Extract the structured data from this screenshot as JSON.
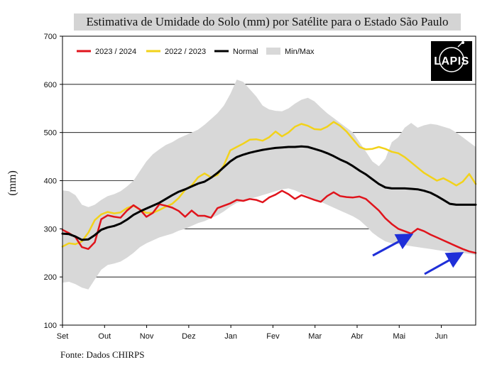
{
  "title": "Estimativa de Umidade do Solo (mm) por Satélite para o Estado São Paulo",
  "source": "Fonte: Dados CHIRPS",
  "logo_text": "LAPIS",
  "colors": {
    "2023_2024": "#e0141c",
    "2022_2023": "#f2d21a",
    "normal": "#000000",
    "minmax": "#d8d8d8",
    "arrow": "#1f2fd8"
  },
  "chart_data": {
    "type": "line",
    "title": "Estimativa de Umidade do Solo (mm) por Satélite para o Estado São Paulo",
    "xlabel": "",
    "ylabel": "(mm)",
    "ylim": [
      100,
      700
    ],
    "yticks": [
      100,
      200,
      300,
      400,
      500,
      600,
      700
    ],
    "months": [
      "Set",
      "Out",
      "Nov",
      "Dez",
      "Jan",
      "Fev",
      "Mar",
      "Abr",
      "Mai",
      "Jun"
    ],
    "xlim": [
      0,
      36
    ],
    "grid": true,
    "legend_position": "top-left",
    "legend": [
      "2023 / 2024",
      "2022 / 2023",
      "Normal",
      "Min/Max"
    ],
    "series": [
      {
        "name": "2023 / 2024",
        "color_key": "2023_2024",
        "values": [
          298,
          291,
          283,
          262,
          258,
          272,
          320,
          328,
          325,
          323,
          338,
          349,
          340,
          325,
          333,
          351,
          348,
          344,
          337,
          325,
          338,
          327,
          327,
          323,
          343,
          348,
          353,
          360,
          358,
          362,
          360,
          355,
          365,
          371,
          379,
          372,
          362,
          370,
          365,
          360,
          356,
          368,
          376,
          368,
          366,
          365,
          367,
          362,
          350,
          338,
          322,
          310,
          300,
          295,
          290,
          300,
          295,
          288,
          282,
          276,
          270,
          264,
          258,
          253,
          250
        ]
      },
      {
        "name": "2022 / 2023",
        "color_key": "2022_2023",
        "values": [
          263,
          270,
          268,
          274,
          292,
          318,
          330,
          335,
          332,
          334,
          343,
          348,
          340,
          333,
          333,
          339,
          346,
          352,
          364,
          381,
          390,
          407,
          415,
          407,
          412,
          432,
          463,
          470,
          477,
          485,
          486,
          483,
          490,
          502,
          492,
          500,
          512,
          518,
          514,
          507,
          506,
          512,
          522,
          514,
          502,
          486,
          470,
          465,
          466,
          470,
          466,
          460,
          457,
          449,
          438,
          427,
          416,
          408,
          400,
          405,
          398,
          390,
          398,
          414,
          393
        ]
      },
      {
        "name": "Normal",
        "color_key": "normal",
        "values": [
          290,
          289,
          284,
          277,
          278,
          287,
          298,
          303,
          306,
          311,
          319,
          329,
          336,
          342,
          348,
          354,
          362,
          370,
          377,
          382,
          388,
          394,
          398,
          406,
          416,
          428,
          440,
          449,
          454,
          458,
          461,
          464,
          466,
          468,
          469,
          470,
          470,
          471,
          470,
          466,
          462,
          457,
          451,
          444,
          438,
          430,
          421,
          413,
          403,
          393,
          386,
          384,
          384,
          384,
          383,
          382,
          379,
          375,
          368,
          360,
          352,
          350,
          350,
          350,
          350
        ]
      },
      {
        "name": "Min/Max",
        "color_key": "minmax",
        "min": [
          188,
          190,
          185,
          178,
          174,
          195,
          215,
          225,
          228,
          232,
          240,
          250,
          262,
          270,
          276,
          282,
          286,
          290,
          296,
          300,
          306,
          312,
          316,
          322,
          328,
          336,
          346,
          354,
          358,
          362,
          366,
          370,
          374,
          378,
          382,
          384,
          380,
          374,
          368,
          362,
          356,
          350,
          344,
          338,
          332,
          326,
          318,
          306,
          292,
          282,
          274,
          270,
          268,
          266,
          264,
          262,
          260,
          258,
          256,
          254,
          252,
          250,
          250,
          248,
          246
        ],
        "max": [
          380,
          378,
          370,
          350,
          345,
          350,
          360,
          368,
          372,
          378,
          388,
          400,
          420,
          440,
          455,
          465,
          474,
          480,
          488,
          494,
          500,
          506,
          516,
          528,
          540,
          556,
          580,
          610,
          605,
          590,
          575,
          556,
          548,
          545,
          544,
          550,
          560,
          568,
          572,
          565,
          552,
          540,
          530,
          520,
          510,
          500,
          480,
          460,
          440,
          430,
          445,
          480,
          490,
          510,
          520,
          510,
          515,
          518,
          516,
          512,
          508,
          500,
          490,
          480,
          470
        ]
      }
    ]
  }
}
